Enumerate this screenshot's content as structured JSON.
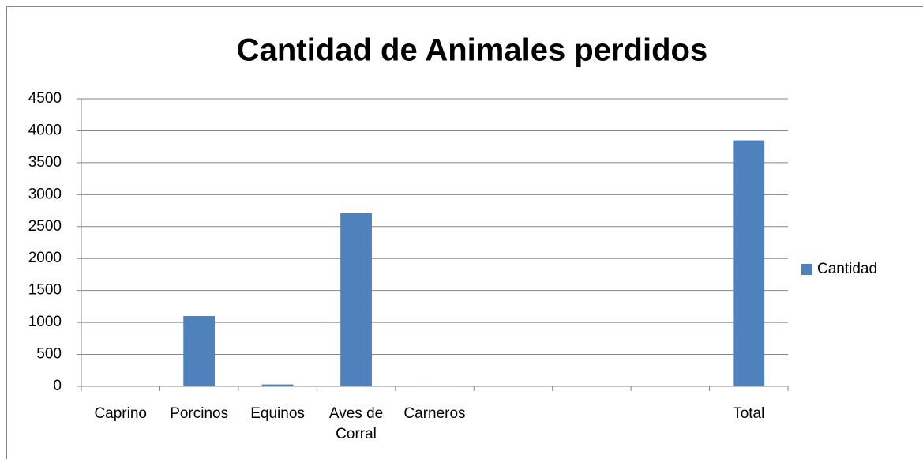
{
  "chart_data": {
    "type": "bar",
    "title": "Cantidad de Animales perdidos",
    "categories": [
      "Caprino",
      "Porcinos",
      "Equinos",
      "Aves de Corral",
      "Carneros",
      null,
      null,
      null,
      "Total"
    ],
    "series": [
      {
        "name": "Cantidad",
        "color": "#4f81bd",
        "values": [
          0,
          1100,
          30,
          2710,
          10,
          null,
          null,
          null,
          3850
        ]
      }
    ],
    "ylim": [
      0,
      4500
    ],
    "yticks": [
      0,
      500,
      1000,
      1500,
      2000,
      2500,
      3000,
      3500,
      4000,
      4500
    ],
    "grid": true,
    "legend": "right"
  }
}
